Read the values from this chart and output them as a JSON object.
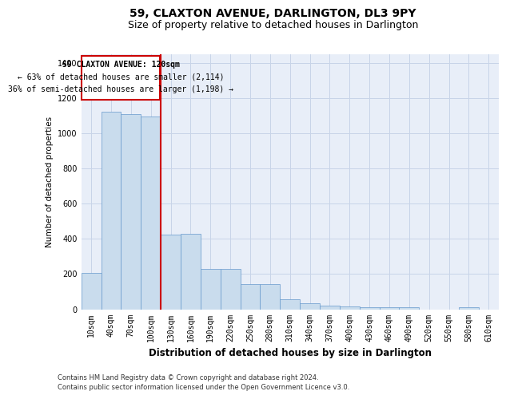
{
  "title": "59, CLAXTON AVENUE, DARLINGTON, DL3 9PY",
  "subtitle": "Size of property relative to detached houses in Darlington",
  "xlabel": "Distribution of detached houses by size in Darlington",
  "ylabel": "Number of detached properties",
  "footer_line1": "Contains HM Land Registry data © Crown copyright and database right 2024.",
  "footer_line2": "Contains public sector information licensed under the Open Government Licence v3.0.",
  "annotation_title": "59 CLAXTON AVENUE: 120sqm",
  "annotation_line2": "← 63% of detached houses are smaller (2,114)",
  "annotation_line3": "36% of semi-detached houses are larger (1,198) →",
  "bar_labels": [
    "10sqm",
    "40sqm",
    "70sqm",
    "100sqm",
    "130sqm",
    "160sqm",
    "190sqm",
    "220sqm",
    "250sqm",
    "280sqm",
    "310sqm",
    "340sqm",
    "370sqm",
    "400sqm",
    "430sqm",
    "460sqm",
    "490sqm",
    "520sqm",
    "550sqm",
    "580sqm",
    "610sqm"
  ],
  "bar_values": [
    205,
    1120,
    1110,
    1095,
    425,
    430,
    230,
    230,
    145,
    145,
    55,
    35,
    20,
    15,
    10,
    10,
    10,
    0,
    0,
    10,
    0
  ],
  "bar_color": "#c9dced",
  "bar_edge_color": "#6699cc",
  "grid_color": "#c8d4e8",
  "background_color": "#e8eef8",
  "vline_x_index": 3,
  "vline_color": "#cc0000",
  "annotation_box_color": "#ffffff",
  "annotation_box_edge": "#cc0000",
  "ylim": [
    0,
    1450
  ],
  "yticks": [
    0,
    200,
    400,
    600,
    800,
    1000,
    1200,
    1400
  ],
  "title_fontsize": 10,
  "subtitle_fontsize": 9,
  "xlabel_fontsize": 8.5,
  "ylabel_fontsize": 7.5,
  "tick_fontsize": 7,
  "annotation_fontsize": 7,
  "footer_fontsize": 6
}
